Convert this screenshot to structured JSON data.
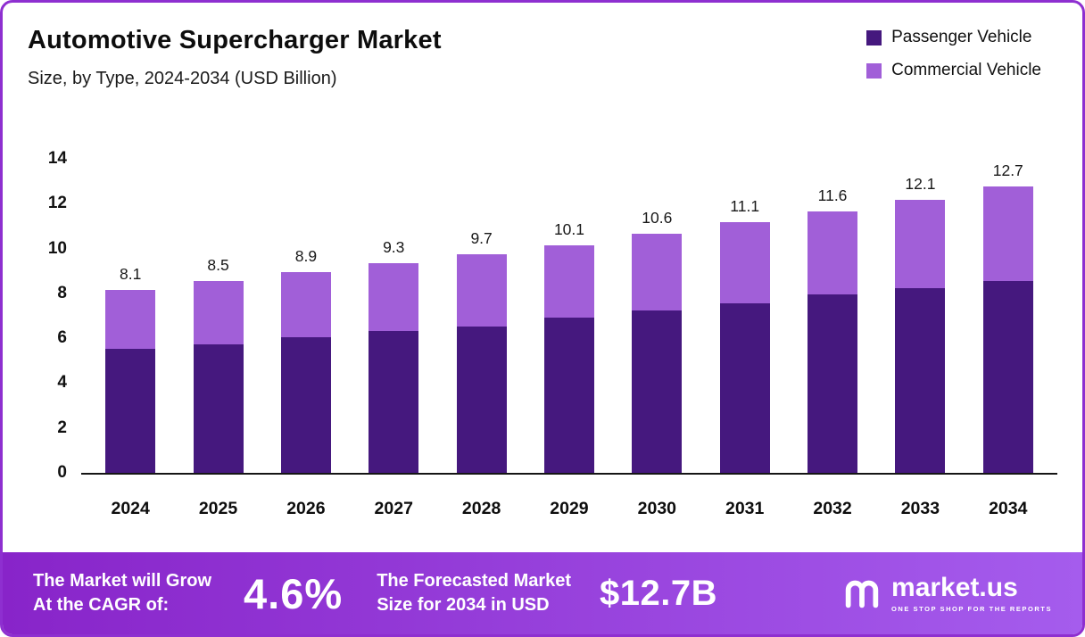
{
  "header": {
    "title": "Automotive Supercharger Market",
    "subtitle": "Size, by Type, 2024-2034 (USD Billion)"
  },
  "legend": [
    {
      "label": "Passenger Vehicle",
      "color": "#45187e"
    },
    {
      "label": "Commercial Vehicle",
      "color": "#a15fd8"
    }
  ],
  "chart_data": {
    "type": "bar",
    "stacked": true,
    "title": "Automotive Supercharger Market Size, by Type, 2024-2034 (USD Billion)",
    "categories": [
      "2024",
      "2025",
      "2026",
      "2027",
      "2028",
      "2029",
      "2030",
      "2031",
      "2032",
      "2033",
      "2034"
    ],
    "series": [
      {
        "name": "Passenger Vehicle",
        "color": "#45187e",
        "values": [
          5.5,
          5.7,
          6.0,
          6.3,
          6.5,
          6.9,
          7.2,
          7.5,
          7.9,
          8.2,
          8.5
        ]
      },
      {
        "name": "Commercial Vehicle",
        "color": "#a15fd8",
        "values": [
          2.6,
          2.8,
          2.9,
          3.0,
          3.2,
          3.2,
          3.4,
          3.6,
          3.7,
          3.9,
          4.2
        ]
      }
    ],
    "totals": [
      8.1,
      8.5,
      8.9,
      9.3,
      9.7,
      10.1,
      10.6,
      11.1,
      11.6,
      12.1,
      12.7
    ],
    "total_labels": [
      "8.1",
      "8.5",
      "8.9",
      "9.3",
      "9.7",
      "10.1",
      "10.6",
      "11.1",
      "11.6",
      "12.1",
      "12.7"
    ],
    "xlabel": "",
    "ylabel": "",
    "ylim": [
      0,
      14
    ],
    "yticks": [
      0,
      2,
      4,
      6,
      8,
      10,
      12,
      14
    ],
    "grid": false,
    "legend_position": "top-right"
  },
  "footer": {
    "cagr_label_line1": "The Market will Grow",
    "cagr_label_line2": "At the CAGR of:",
    "cagr_value": "4.6%",
    "forecast_label_line1": "The Forecasted Market",
    "forecast_label_line2": "Size for 2034 in USD",
    "forecast_value": "$12.7B",
    "brand_name": "market.us",
    "brand_tagline": "ONE STOP SHOP FOR THE REPORTS"
  },
  "icons": {
    "brand": "market-us-squiggle-logo"
  },
  "colors": {
    "border": "#8e2fd0",
    "banner_gradient_start": "#8824c9",
    "banner_gradient_end": "#a55ced",
    "passenger": "#45187e",
    "commercial": "#a15fd8"
  }
}
